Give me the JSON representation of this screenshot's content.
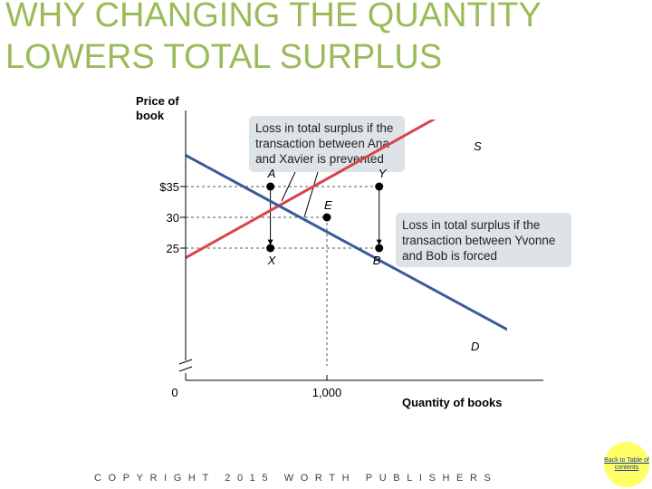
{
  "title_lines": [
    "WHY CHANGING THE QUANTITY",
    "LOWERS TOTAL SURPLUS"
  ],
  "footer": "COPYRIGHT 2015 WORTH PUBLISHERS",
  "toc_link": "Back to Table of contents",
  "colors": {
    "title": "#9bbb59",
    "supply": "#d9434e",
    "demand": "#3c5a9a",
    "callout": "#dde3e6",
    "axis": "#000000",
    "toc": "#ffff66"
  },
  "chart_data": {
    "type": "line",
    "ylabel_lines": [
      "Price of",
      "book"
    ],
    "xlabel": "Quantity of books",
    "x_ticks": [
      {
        "value": 0,
        "label": "0"
      },
      {
        "value": 1000,
        "label": "1,000"
      }
    ],
    "y_ticks": [
      {
        "value": 25,
        "label": "25"
      },
      {
        "value": 30,
        "label": "30"
      },
      {
        "value": 35,
        "label": "$35"
      }
    ],
    "axis_break": true,
    "series": [
      {
        "label": "S",
        "color": "supply",
        "points": [
          [
            -1050,
            10
          ],
          [
            2700,
            58
          ]
        ]
      },
      {
        "label": "D",
        "color": "demand",
        "points": [
          [
            -1200,
            55
          ],
          [
            2500,
            9
          ]
        ]
      }
    ],
    "points": [
      {
        "label": "A",
        "x": 600,
        "y": 35
      },
      {
        "label": "Y",
        "x": 1370,
        "y": 35
      },
      {
        "label": "E",
        "x": 1000,
        "y": 30
      },
      {
        "label": "X",
        "x": 600,
        "y": 25
      },
      {
        "label": "B",
        "x": 1370,
        "y": 25
      }
    ],
    "callouts": [
      {
        "lines": [
          "Loss in total surplus if the",
          "transaction between Ana",
          "and Xavier is prevented"
        ]
      },
      {
        "lines": [
          "Loss in total surplus if the",
          "transaction between Yvonne",
          "and Bob is forced"
        ]
      }
    ]
  }
}
